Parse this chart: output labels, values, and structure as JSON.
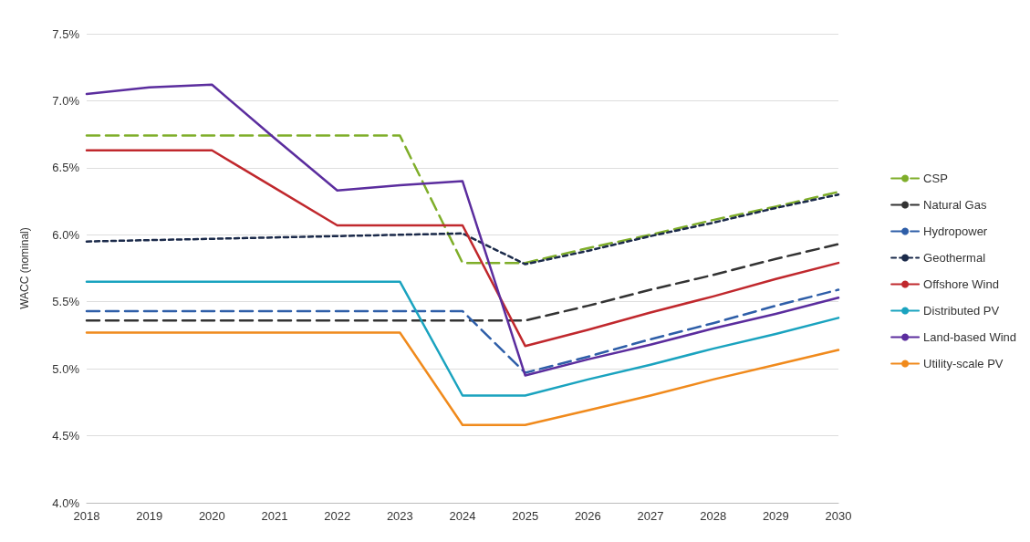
{
  "chart_data": {
    "type": "line",
    "ylabel": "WACC (nominal)",
    "categories": [
      "2018",
      "2019",
      "2020",
      "2021",
      "2022",
      "2023",
      "2024",
      "2025",
      "2026",
      "2027",
      "2028",
      "2029",
      "2030"
    ],
    "ylim": [
      4.0,
      7.5
    ],
    "yticks": [
      {
        "value": 4.0,
        "label": "4.0%"
      },
      {
        "value": 4.5,
        "label": "4.5%"
      },
      {
        "value": 5.0,
        "label": "5.0%"
      },
      {
        "value": 5.5,
        "label": "5.5%"
      },
      {
        "value": 6.0,
        "label": "6.0%"
      },
      {
        "value": 6.5,
        "label": "6.5%"
      },
      {
        "value": 7.0,
        "label": "7.0%"
      },
      {
        "value": 7.5,
        "label": "7.5%"
      }
    ],
    "grid": "y",
    "legend": "right",
    "marker": "none",
    "series": [
      {
        "name": "CSP",
        "color": "#7fae2a",
        "line_style": "dashed",
        "values": [
          6.74,
          6.74,
          6.74,
          6.74,
          6.74,
          6.74,
          5.79,
          5.79,
          5.9,
          6.0,
          6.11,
          6.21,
          6.32
        ]
      },
      {
        "name": "Natural Gas",
        "color": "#333333",
        "line_style": "dashed",
        "values": [
          5.36,
          5.36,
          5.36,
          5.36,
          5.36,
          5.36,
          5.36,
          5.36,
          5.47,
          5.59,
          5.7,
          5.82,
          5.93
        ]
      },
      {
        "name": "Hydropower",
        "color": "#2e5ea8",
        "line_style": "dashed",
        "values": [
          5.43,
          5.43,
          5.43,
          5.43,
          5.43,
          5.43,
          5.43,
          4.97,
          5.09,
          5.22,
          5.34,
          5.47,
          5.59
        ]
      },
      {
        "name": "Geothermal",
        "color": "#1b2a4a",
        "line_style": "dotted",
        "values": [
          5.95,
          5.96,
          5.97,
          5.98,
          5.99,
          6.0,
          6.01,
          5.78,
          5.88,
          5.99,
          6.09,
          6.2,
          6.3
        ]
      },
      {
        "name": "Offshore Wind",
        "color": "#c0282d",
        "line_style": "solid",
        "values": [
          6.63,
          6.63,
          6.63,
          6.35,
          6.07,
          6.07,
          6.07,
          5.17,
          5.29,
          5.42,
          5.54,
          5.67,
          5.79
        ]
      },
      {
        "name": "Distributed PV",
        "color": "#1aa3bf",
        "line_style": "solid",
        "values": [
          5.65,
          5.65,
          5.65,
          5.65,
          5.65,
          5.65,
          4.8,
          4.8,
          4.92,
          5.03,
          5.15,
          5.26,
          5.38
        ]
      },
      {
        "name": "Land-based Wind",
        "color": "#5b2d9e",
        "line_style": "solid",
        "values": [
          7.05,
          7.1,
          7.12,
          6.72,
          6.33,
          6.37,
          6.4,
          4.95,
          5.07,
          5.18,
          5.3,
          5.41,
          5.53
        ]
      },
      {
        "name": "Utility-scale PV",
        "color": "#f08a1c",
        "line_style": "solid",
        "values": [
          5.27,
          5.27,
          5.27,
          5.27,
          5.27,
          5.27,
          4.58,
          4.58,
          4.69,
          4.8,
          4.92,
          5.03,
          5.14
        ]
      }
    ]
  }
}
